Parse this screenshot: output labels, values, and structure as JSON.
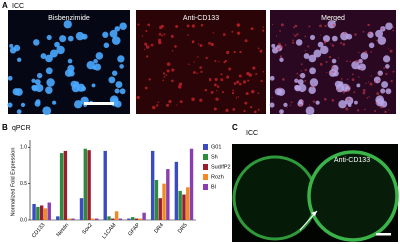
{
  "panel_a": {
    "label": "A",
    "title": "ICC",
    "images": [
      "Bisbenzimide",
      "Anti-CD133",
      "Merged"
    ]
  },
  "panel_c": {
    "label": "C",
    "title": "ICC",
    "image_label": "Anti-CD133"
  },
  "chart_data": {
    "type": "bar",
    "panel_label": "B",
    "title": "qPCR",
    "y_label": "Normalized Fold Expression",
    "categories": [
      "CD133",
      "Nestin",
      "Sox2",
      "L1CAM",
      "GFAP",
      "DR4",
      "DR5"
    ],
    "series": [
      {
        "name": "G01",
        "color": "#3b4cc0",
        "values": [
          0.22,
          0.05,
          0.3,
          0.95,
          0.02,
          0.95,
          0.8
        ]
      },
      {
        "name": "Sh",
        "color": "#2e8b3e",
        "values": [
          0.18,
          0.92,
          0.98,
          0.05,
          0.04,
          0.55,
          0.4
        ]
      },
      {
        "name": "Sud/fP2",
        "color": "#9b1c2c",
        "values": [
          0.2,
          0.95,
          0.96,
          0.02,
          0.02,
          0.3,
          0.35
        ]
      },
      {
        "name": "Rozh",
        "color": "#f08a24",
        "values": [
          0.16,
          0.02,
          0.02,
          0.12,
          0.02,
          0.5,
          0.45
        ]
      },
      {
        "name": "Bl",
        "color": "#8a3fb0",
        "values": [
          0.24,
          0.02,
          0.02,
          0.02,
          0.1,
          0.7,
          0.98
        ]
      }
    ],
    "ylim": [
      0,
      1.1
    ],
    "yticks": [
      {
        "value": 0,
        "label": "0.0"
      },
      {
        "value": 0.5,
        "label": "0.5"
      },
      {
        "value": 1,
        "label": "1.0"
      }
    ],
    "legend": "right"
  }
}
